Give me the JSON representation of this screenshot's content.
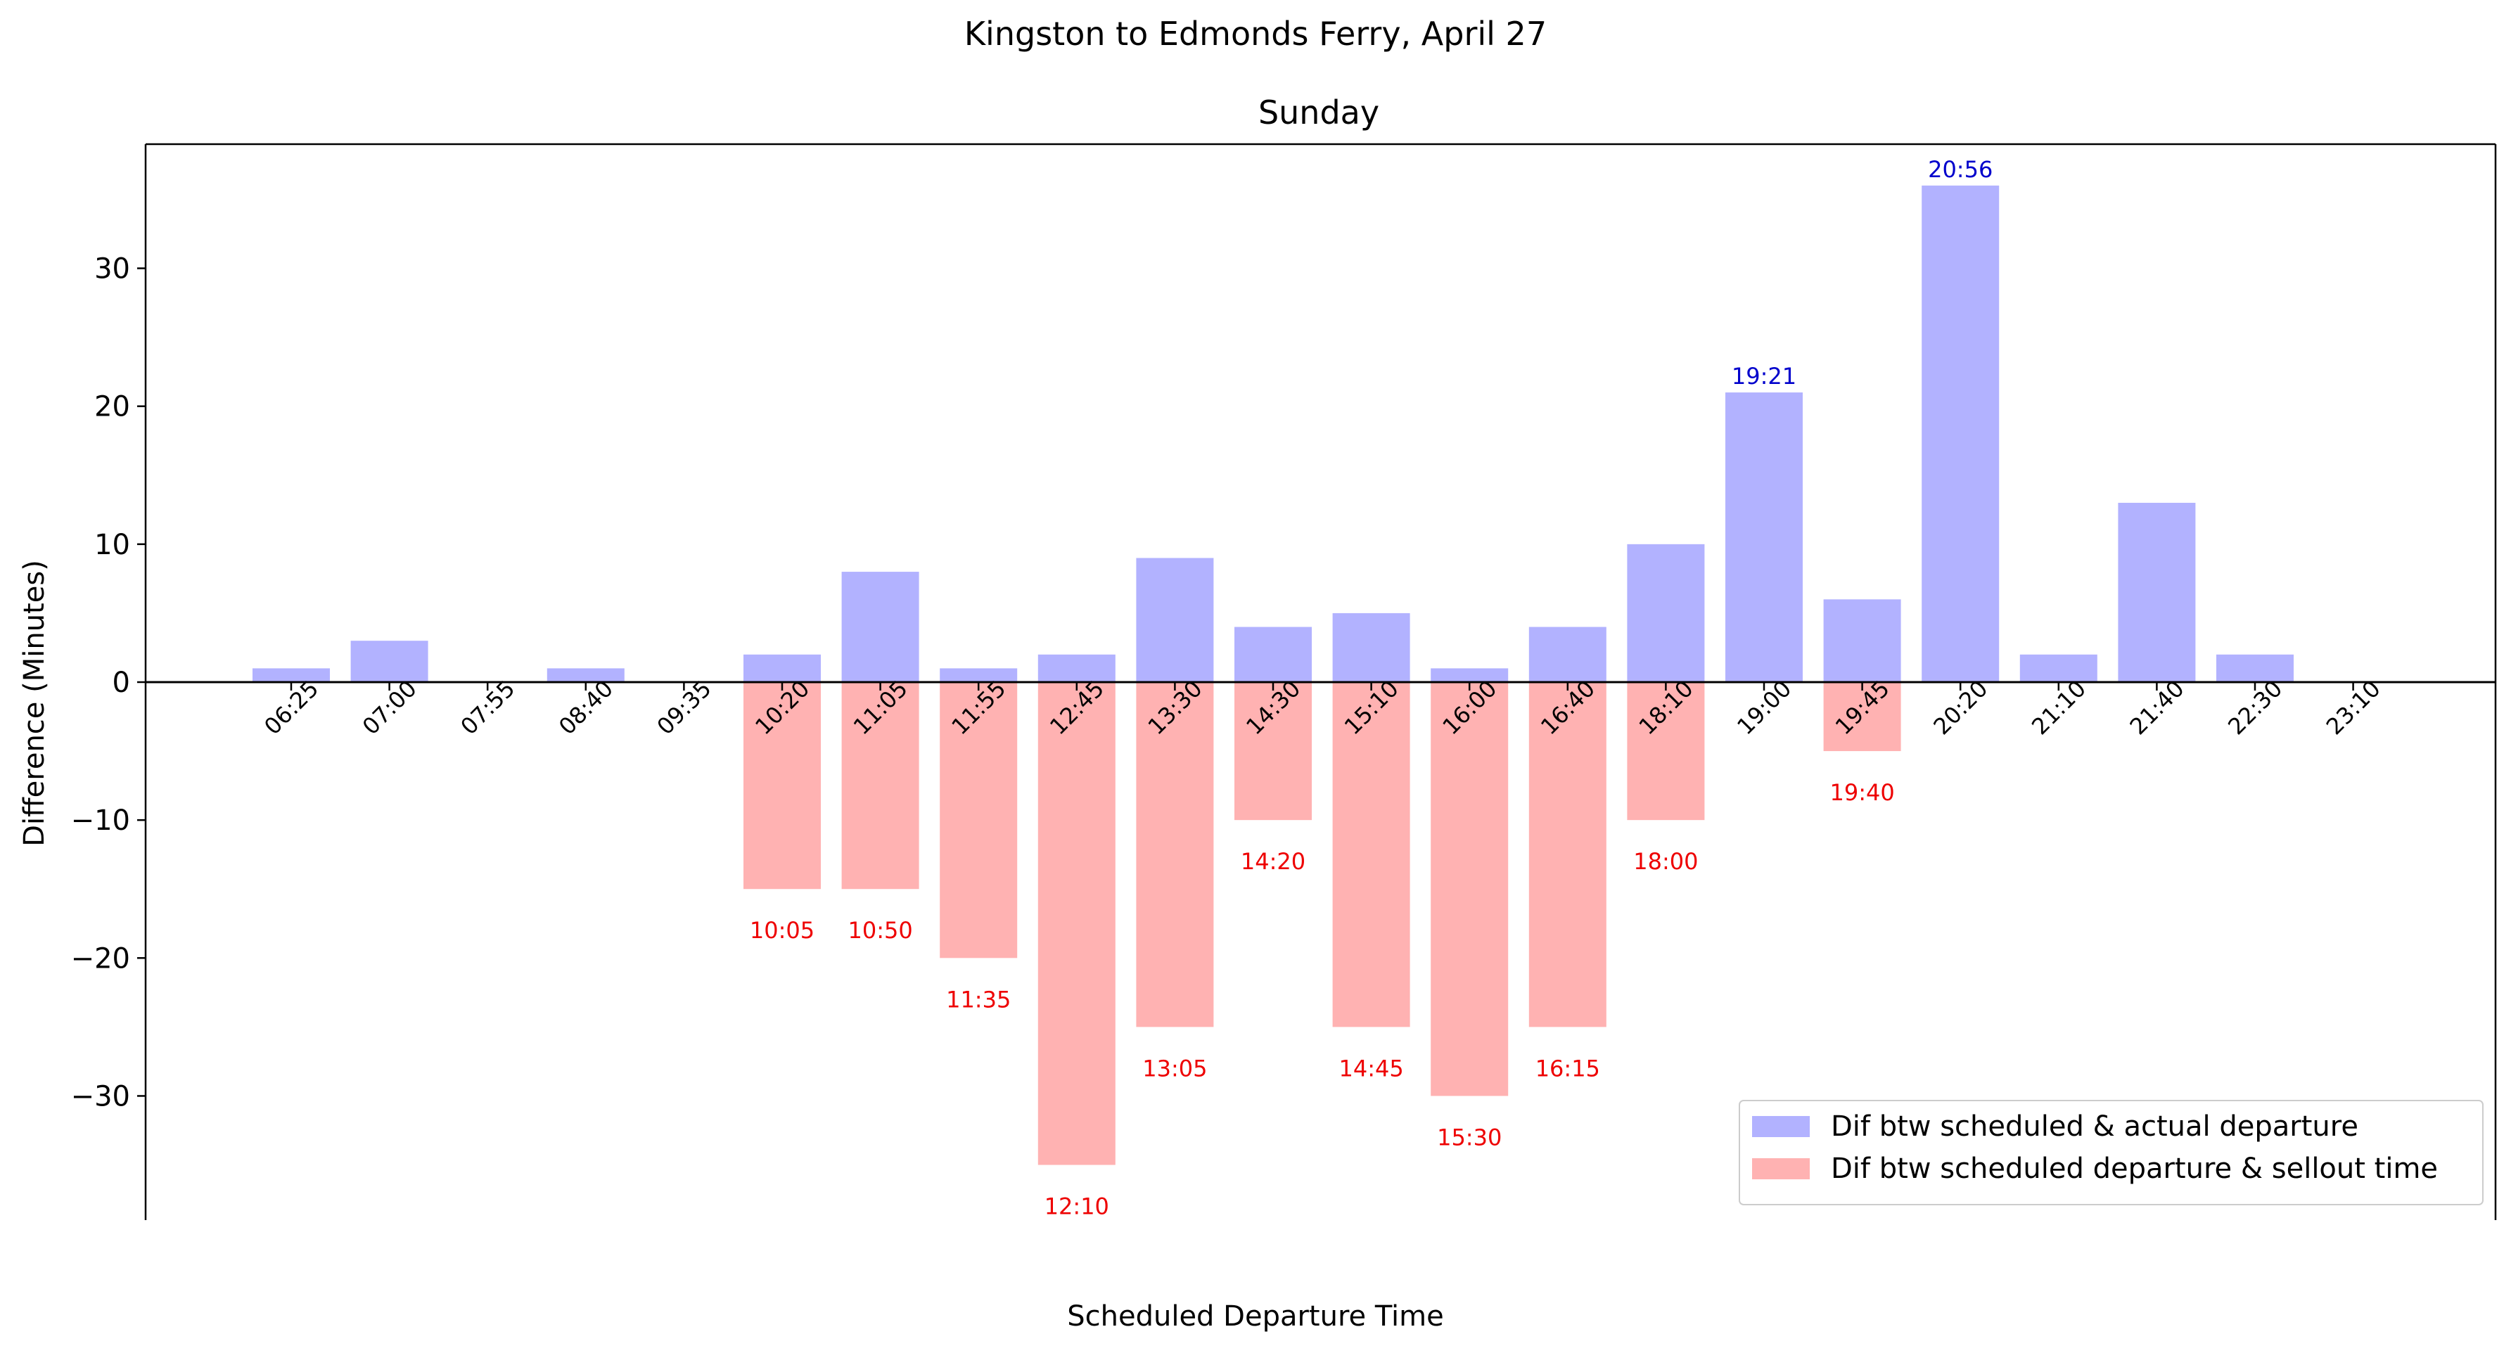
{
  "chart_data": {
    "type": "bar",
    "suptitle": "Kingston to Edmonds Ferry, April 27",
    "title": "Sunday",
    "xlabel": "Scheduled Departure Time",
    "ylabel": "Difference (Minutes)",
    "ylim": [
      -39,
      39
    ],
    "yticks": [
      -30,
      -20,
      -10,
      0,
      10,
      20,
      30
    ],
    "categories": [
      "06:25",
      "07:00",
      "07:55",
      "08:40",
      "09:35",
      "10:20",
      "11:05",
      "11:55",
      "12:45",
      "13:30",
      "14:30",
      "15:10",
      "16:00",
      "16:40",
      "18:10",
      "19:00",
      "19:45",
      "20:20",
      "21:10",
      "21:40",
      "22:30",
      "23:10"
    ],
    "series": [
      {
        "name": "Dif btw scheduled & actual departure",
        "color": "#b2b2ff",
        "values": [
          1,
          3,
          0,
          1,
          0,
          2,
          8,
          1,
          2,
          9,
          4,
          5,
          1,
          4,
          10,
          21,
          6,
          36,
          2,
          13,
          2,
          0
        ]
      },
      {
        "name": "Dif btw scheduled departure & sellout time",
        "color": "#ffb2b2",
        "values": [
          0,
          0,
          0,
          0,
          0,
          -15,
          -15,
          -20,
          -35,
          -25,
          -10,
          -25,
          -30,
          -25,
          -10,
          0,
          -5,
          0,
          0,
          0,
          0,
          0
        ]
      }
    ],
    "annotations_actual": [
      {
        "index": 15,
        "text": "19:21"
      },
      {
        "index": 17,
        "text": "20:56"
      }
    ],
    "annotations_sellout": [
      {
        "index": 5,
        "text": "10:05"
      },
      {
        "index": 6,
        "text": "10:50"
      },
      {
        "index": 7,
        "text": "11:35"
      },
      {
        "index": 8,
        "text": "12:10"
      },
      {
        "index": 9,
        "text": "13:05"
      },
      {
        "index": 10,
        "text": "14:20"
      },
      {
        "index": 11,
        "text": "14:45"
      },
      {
        "index": 12,
        "text": "15:30"
      },
      {
        "index": 13,
        "text": "16:15"
      },
      {
        "index": 14,
        "text": "18:00"
      },
      {
        "index": 16,
        "text": "19:40"
      }
    ],
    "legend_position": "lower-right",
    "annotation_colors": {
      "actual": "#0000cc",
      "sellout": "#ee0000"
    }
  }
}
